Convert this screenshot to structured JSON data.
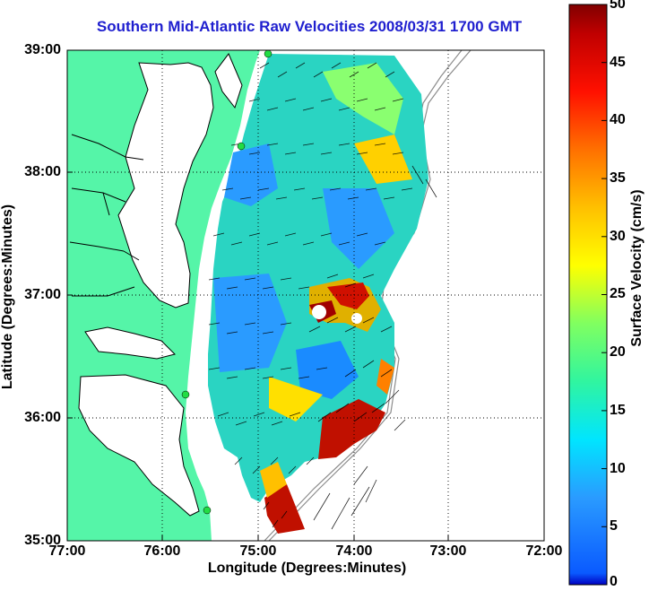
{
  "map": {
    "title": "Southern Mid-Atlantic Raw Velocities 2008/03/31 1700 GMT",
    "xlabel": "Longitude (Degrees:Minutes)",
    "ylabel": "Latitude (Degrees:Minutes)",
    "x_ticks": [
      "77:00",
      "76:00",
      "75:00",
      "74:00",
      "73:00",
      "72:00"
    ],
    "y_ticks": [
      "39:00",
      "38:00",
      "37:00",
      "36:00",
      "35:00"
    ],
    "extent": {
      "lon": [
        -77,
        -72
      ],
      "lat": [
        35,
        39
      ]
    },
    "grid": "dotted",
    "colors": {
      "land": "#55f5a8",
      "coast_line": "#000000",
      "title": "#1f1fcf",
      "station_marker": "#22dd44",
      "bathymetry": "#8c8c8c"
    }
  },
  "colorbar": {
    "label": "Surface Velocity (cm/s)",
    "ticks": [
      "50",
      "45",
      "40",
      "35",
      "30",
      "25",
      "20",
      "15",
      "10",
      "5",
      "0"
    ],
    "range": [
      0,
      50
    ],
    "colormap": "jet"
  }
}
